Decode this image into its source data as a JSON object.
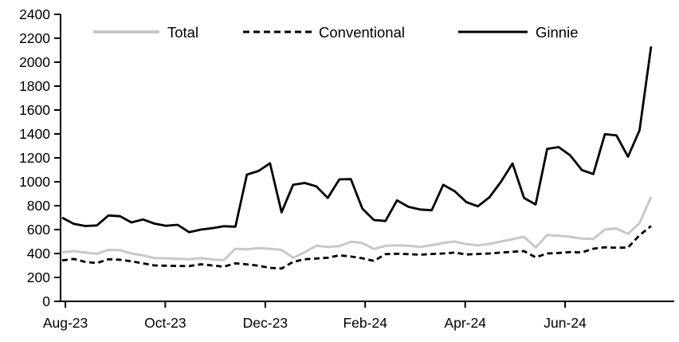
{
  "chart_data": {
    "type": "line",
    "title": "",
    "xlabel": "",
    "ylabel": "",
    "grid": false,
    "legend_position": "top",
    "frequency": "weekly",
    "x_axis": {
      "tick_labels": [
        "Aug-23",
        "Oct-23",
        "Dec-23",
        "Feb-24",
        "Apr-24",
        "Jun-24"
      ],
      "tick_positions": [
        0.28,
        8.93,
        17.59,
        26.24,
        34.9,
        43.55
      ]
    },
    "y_axis": {
      "min": 0,
      "max": 2400,
      "step": 200,
      "tick_labels": [
        "0",
        "200",
        "400",
        "600",
        "800",
        "1000",
        "1200",
        "1400",
        "1600",
        "1800",
        "2000",
        "2200",
        "2400"
      ]
    },
    "series": [
      {
        "name": "Total",
        "color": "#c8c8c8",
        "style": "solid",
        "values": [
          410,
          420,
          408,
          398,
          430,
          428,
          400,
          385,
          362,
          360,
          356,
          352,
          362,
          350,
          345,
          440,
          435,
          445,
          440,
          430,
          365,
          410,
          465,
          455,
          462,
          498,
          487,
          438,
          465,
          468,
          465,
          455,
          470,
          488,
          500,
          478,
          468,
          480,
          500,
          520,
          540,
          450,
          555,
          548,
          540,
          525,
          522,
          600,
          610,
          565,
          655,
          875
        ]
      },
      {
        "name": "Conventional",
        "color": "#000000",
        "style": "dashed",
        "values": [
          342,
          355,
          330,
          320,
          352,
          348,
          335,
          318,
          300,
          298,
          296,
          295,
          310,
          300,
          290,
          318,
          309,
          298,
          280,
          275,
          330,
          352,
          358,
          365,
          385,
          375,
          360,
          338,
          395,
          398,
          395,
          390,
          396,
          400,
          408,
          392,
          396,
          400,
          408,
          415,
          420,
          368,
          400,
          405,
          412,
          409,
          440,
          452,
          448,
          450,
          553,
          630
        ]
      },
      {
        "name": "Ginnie",
        "color": "#000000",
        "style": "solid",
        "values": [
          700,
          648,
          630,
          635,
          718,
          712,
          660,
          685,
          650,
          632,
          640,
          578,
          600,
          612,
          628,
          625,
          1060,
          1090,
          1155,
          745,
          975,
          990,
          962,
          865,
          1020,
          1022,
          775,
          680,
          672,
          845,
          790,
          768,
          762,
          975,
          920,
          830,
          795,
          870,
          1000,
          1153,
          864,
          810,
          1275,
          1290,
          1220,
          1098,
          1065,
          1398,
          1388,
          1209,
          1431,
          2131
        ]
      }
    ]
  },
  "colors": {
    "background": "#ffffff",
    "axis": "#000000",
    "text": "#000000",
    "total_line": "#c8c8c8",
    "conventional_line": "#000000",
    "ginnie_line": "#000000"
  }
}
